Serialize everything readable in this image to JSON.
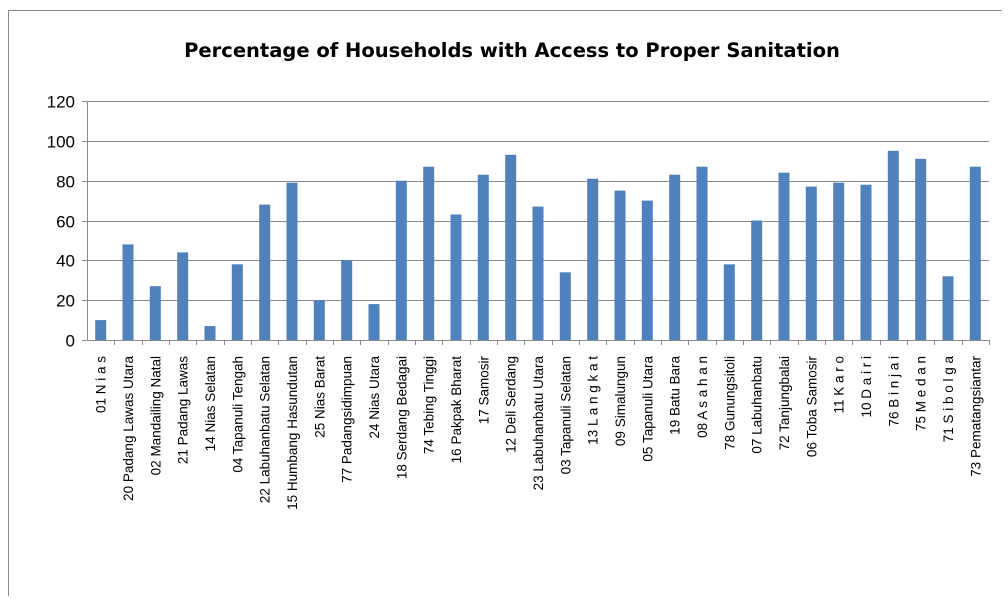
{
  "chart_data": {
    "type": "bar",
    "title": "Percentage of Households with Access to Proper Sanitation",
    "xlabel": "",
    "ylabel": "",
    "ylim": [
      0,
      120
    ],
    "yticks": [
      0,
      20,
      40,
      60,
      80,
      100,
      120
    ],
    "grid": true,
    "legend": "none",
    "bar_color": "#4f81bd",
    "grid_color": "#8c8c8c",
    "categories": [
      "01  N i a s",
      "20  Padang Lawas Utara",
      "02  Mandailing Natal",
      "21  Padang Lawas",
      "14  Nias Selatan",
      "04  Tapanuli Tengah",
      "22  Labuhanbatu Selatan",
      "15  Humbang Hasundutan",
      "25  Nias Barat",
      "77  Padangsidimpuan",
      "24  Nias Utara",
      "18  Serdang Bedagai",
      "74  Tebing Tinggi",
      "16  Pakpak Bharat",
      "17  Samosir",
      "12  Deli Serdang",
      "23  Labuhanbatu Utara",
      "03  Tapanuli Selatan",
      "13  L a n g k a t",
      "09  Simalungun",
      "05  Tapanuli Utara",
      "19  Batu Bara",
      "08  A s a h a n",
      "78  Gunungsitoli",
      "07  Labuhanbatu",
      "72  Tanjungbalai",
      "06  Toba Samosir",
      "11  K a r o",
      "10  D a i r i",
      "76  B i n j a i",
      "75  M e d a n",
      "71  S i b o l g a",
      "73  Pematangsiantar"
    ],
    "values": [
      10,
      48,
      27,
      44,
      7,
      38,
      68,
      79,
      20,
      40,
      18,
      80,
      87,
      63,
      83,
      93,
      67,
      34,
      81,
      75,
      70,
      83,
      87,
      38,
      60,
      84,
      77,
      79,
      78,
      95,
      91,
      32,
      87
    ]
  }
}
